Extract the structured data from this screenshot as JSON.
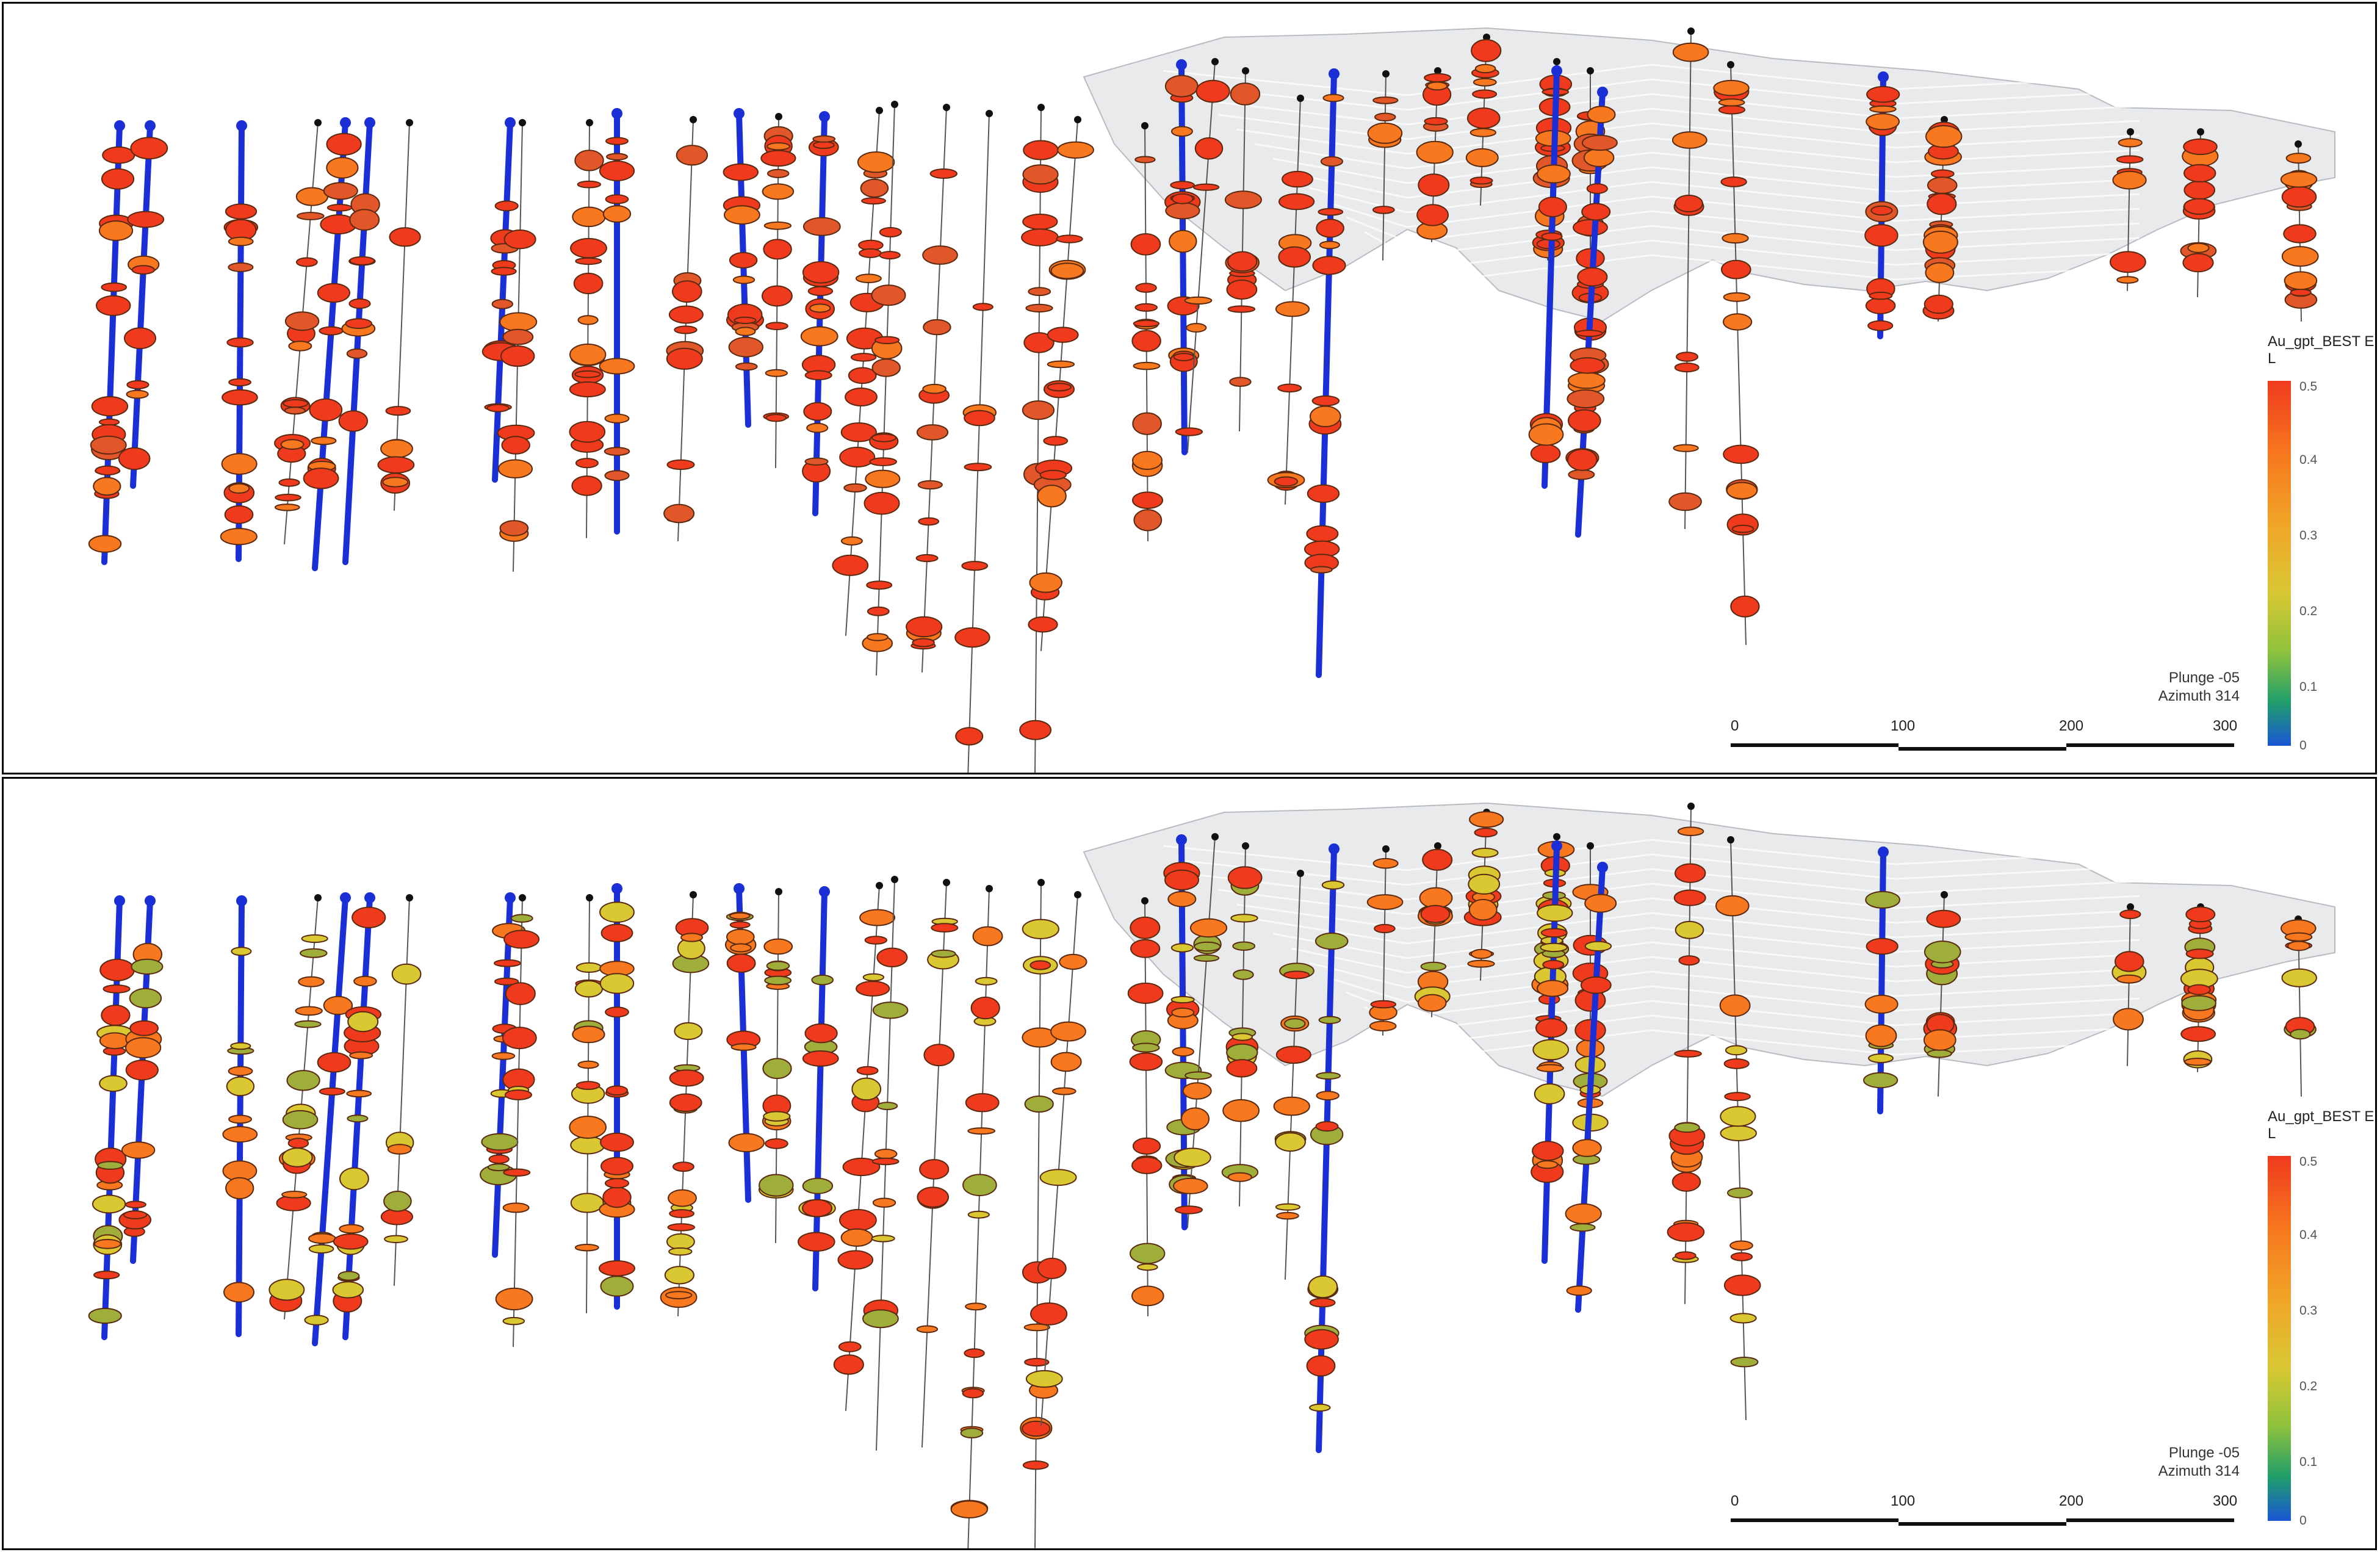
{
  "panels": [
    {
      "id": "top",
      "colormode": "top"
    },
    {
      "id": "bottom",
      "colormode": "bottom"
    }
  ],
  "legend": {
    "title": "Au_gpt_BEST EL",
    "ticks": [
      "0.5",
      "0.4",
      "0.3",
      "0.2",
      "0.1",
      "0"
    ]
  },
  "view": {
    "plunge": "Plunge -05",
    "azimuth": "Azimuth 314"
  },
  "scale": {
    "labels": [
      "0",
      "100",
      "200",
      "300"
    ]
  },
  "colors": {
    "blue_hole": "#1a2fd6",
    "trace": "#555555",
    "surface": "#d6d8dc",
    "high": "#f03a1e",
    "mid": "#f7781e",
    "low": "#d9c832"
  },
  "icons": {
    "collar": "black-dot",
    "assay": "disc"
  }
}
